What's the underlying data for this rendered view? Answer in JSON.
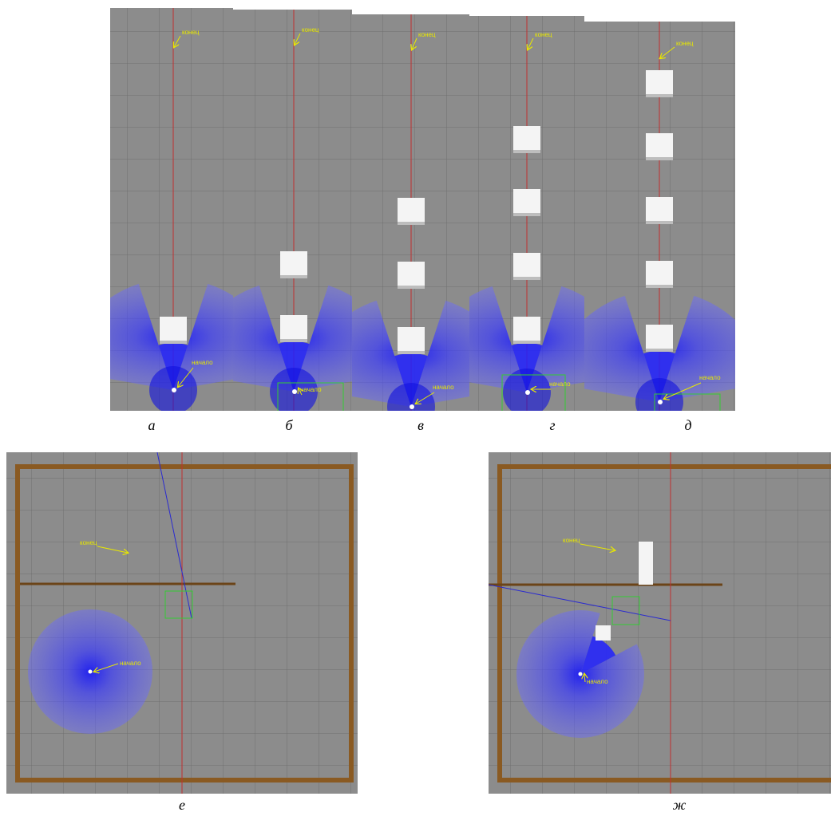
{
  "top_panels": [
    {
      "label": "а",
      "end_label": "конец",
      "start_label": "начало"
    },
    {
      "label": "б",
      "end_label": "конец",
      "start_label": "начало"
    },
    {
      "label": "в",
      "end_label": "конец",
      "start_label": "начало"
    },
    {
      "label": "г",
      "end_label": "конец",
      "start_label": "начало"
    },
    {
      "label": "д",
      "end_label": "конец",
      "start_label": "начало"
    }
  ],
  "bottom_panels": [
    {
      "label": "е",
      "end_label": "конец",
      "start_label": "начало"
    },
    {
      "label": "ж",
      "end_label": "конец",
      "start_label": "начало"
    }
  ]
}
